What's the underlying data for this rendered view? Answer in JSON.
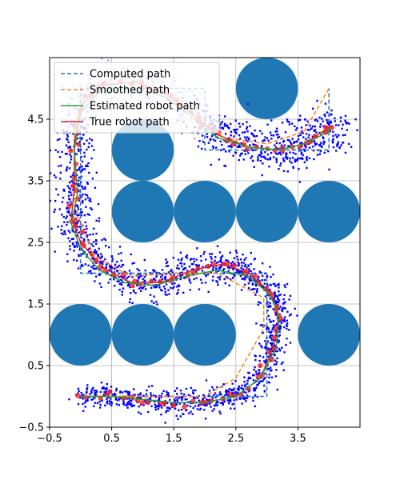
{
  "chart_data": {
    "type": "scatter",
    "title": "",
    "xlabel": "",
    "ylabel": "",
    "xlim": [
      -0.5,
      4.5
    ],
    "ylim": [
      -0.5,
      5.5
    ],
    "grid": true,
    "legend_position": "upper-left",
    "xticks": [
      -0.5,
      0.5,
      1.5,
      2.5,
      3.5
    ],
    "xtick_labels": [
      "−0.5",
      "0.5",
      "1.5",
      "2.5",
      "3.5"
    ],
    "yticks": [
      -0.5,
      0.5,
      1.5,
      2.5,
      3.5,
      4.5
    ],
    "ytick_labels": [
      "−0.5",
      "0.5",
      "1.5",
      "2.5",
      "3.5",
      "4.5"
    ],
    "obstacles": {
      "color": "#1f77b4",
      "radius": 0.5,
      "centers": [
        [
          3,
          5
        ],
        [
          1,
          4
        ],
        [
          1,
          3
        ],
        [
          2,
          3
        ],
        [
          3,
          3
        ],
        [
          4,
          3
        ],
        [
          0,
          1
        ],
        [
          1,
          1
        ],
        [
          2,
          1
        ],
        [
          4,
          1
        ]
      ]
    },
    "series": [
      {
        "name": "Computed path",
        "color": "#1f77b4",
        "style": "dashed",
        "x": [
          0,
          1,
          2,
          3,
          3,
          2,
          1,
          0,
          0,
          0,
          0,
          1,
          2,
          2,
          3,
          4,
          4
        ],
        "y": [
          0,
          0,
          0,
          0,
          2,
          2,
          2,
          2,
          3,
          4,
          5,
          5,
          5,
          4,
          4,
          4,
          5
        ]
      },
      {
        "name": "Smoothed path",
        "color": "#ff7f0e",
        "style": "dashed",
        "x": [
          0,
          1,
          2,
          2.5,
          2.95,
          2.95,
          2.2,
          1.5,
          0.8,
          0.2,
          -0.1,
          -0.1,
          0.1,
          0.7,
          1.6,
          2.3,
          3.0,
          3.6,
          4.0
        ],
        "y": [
          0,
          0,
          0,
          0.3,
          1.1,
          1.6,
          2.0,
          2.0,
          1.95,
          2.3,
          3.1,
          4.3,
          5.05,
          5.2,
          4.8,
          4.2,
          4.1,
          4.3,
          5.0
        ]
      },
      {
        "name": "Estimated robot path",
        "color": "#2ca02c",
        "style": "solid",
        "x": [
          0,
          0.5,
          1.0,
          1.5,
          2.0,
          2.5,
          2.9,
          3.15,
          3.2,
          3.05,
          2.7,
          2.2,
          1.7,
          1.2,
          0.7,
          0.3,
          0.0,
          -0.15,
          -0.05,
          -0.1,
          0.0,
          0.3,
          0.9,
          1.4,
          1.9,
          2.2,
          2.7,
          3.2,
          3.6,
          3.9,
          4.05
        ],
        "y": [
          0,
          0.0,
          -0.05,
          -0.1,
          -0.1,
          0.0,
          0.3,
          0.8,
          1.3,
          1.65,
          1.95,
          2.05,
          1.95,
          1.8,
          1.85,
          2.05,
          2.4,
          2.8,
          3.3,
          4.0,
          4.6,
          4.95,
          5.0,
          4.85,
          4.45,
          4.2,
          4.05,
          4.0,
          4.1,
          4.25,
          4.35
        ]
      },
      {
        "name": "True robot path",
        "color": "#d62728",
        "style": "solid",
        "x": [
          0,
          0.5,
          1.0,
          1.5,
          2.0,
          2.5,
          2.9,
          3.1,
          3.2,
          3.05,
          2.7,
          2.3,
          1.8,
          1.3,
          0.8,
          0.35,
          0.0,
          -0.15,
          -0.1,
          -0.1,
          0.0,
          0.3,
          0.9,
          1.4,
          1.9,
          2.2,
          2.7,
          3.2,
          3.6,
          3.9,
          4.05
        ],
        "y": [
          0,
          0.0,
          -0.05,
          -0.1,
          -0.1,
          0.0,
          0.3,
          0.8,
          1.3,
          1.7,
          2.0,
          2.15,
          2.05,
          1.85,
          1.85,
          2.1,
          2.5,
          2.9,
          3.4,
          4.1,
          4.7,
          5.05,
          5.1,
          4.9,
          4.5,
          4.25,
          4.05,
          4.0,
          4.1,
          4.3,
          4.4
        ]
      }
    ]
  }
}
